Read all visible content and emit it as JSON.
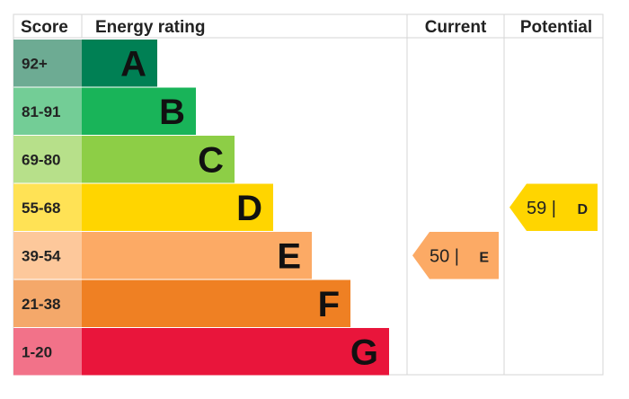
{
  "chart_data": {
    "type": "bar",
    "headers": {
      "score": "Score",
      "rating": "Energy rating",
      "current": "Current",
      "potential": "Potential"
    },
    "bands": [
      {
        "range": "92+",
        "letter": "A",
        "color": "#008054",
        "tint": "#6dab93"
      },
      {
        "range": "81-91",
        "letter": "B",
        "color": "#19b459",
        "tint": "#73cd96"
      },
      {
        "range": "69-80",
        "letter": "C",
        "color": "#8dce46",
        "tint": "#b7e08a"
      },
      {
        "range": "55-68",
        "letter": "D",
        "color": "#ffd500",
        "tint": "#ffe255"
      },
      {
        "range": "39-54",
        "letter": "E",
        "color": "#fcaa65",
        "tint": "#fdc89b"
      },
      {
        "range": "21-38",
        "letter": "F",
        "color": "#ef8023",
        "tint": "#f4a86a"
      },
      {
        "range": "1-20",
        "letter": "G",
        "color": "#e9153b",
        "tint": "#f27289"
      }
    ],
    "current": {
      "value": 50,
      "band": "E",
      "color": "#fcaa65",
      "text_value": "50 |",
      "text_letter": "E"
    },
    "potential": {
      "value": 59,
      "band": "D",
      "color": "#ffd500",
      "text_value": "59 |",
      "text_letter": "D"
    }
  }
}
